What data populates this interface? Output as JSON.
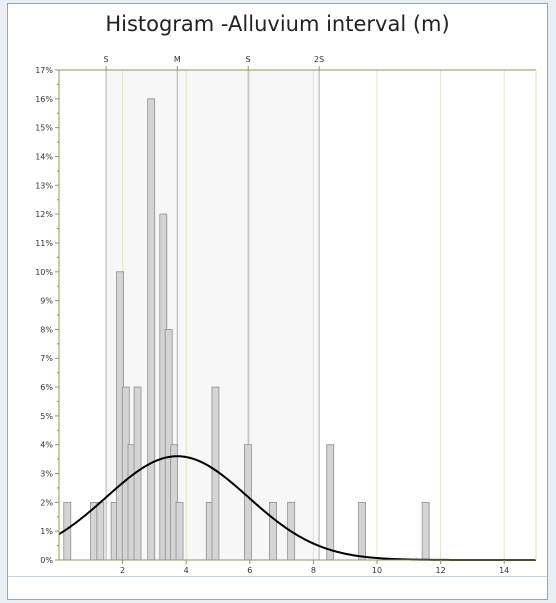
{
  "chart_data": {
    "type": "bar",
    "title": "Histogram -Alluvium interval (m)",
    "xlabel": "",
    "ylabel": "",
    "xlim": [
      0,
      15
    ],
    "ylim": [
      0,
      17
    ],
    "x_ticks": [
      2,
      4,
      6,
      8,
      10,
      12,
      14
    ],
    "y_ticks": [
      0,
      1,
      2,
      3,
      4,
      5,
      6,
      7,
      8,
      9,
      10,
      11,
      12,
      13,
      14,
      15,
      16,
      17
    ],
    "y_tick_suffix": "%",
    "grid": true,
    "top_axis": {
      "labels": [
        {
          "text": "S",
          "x": 1.48
        },
        {
          "text": "M",
          "x": 3.72
        },
        {
          "text": "S",
          "x": 5.95
        },
        {
          "text": "2S",
          "x": 8.18
        }
      ]
    },
    "bars": {
      "width": 0.22,
      "centers": [
        0.26,
        1.1,
        1.3,
        1.75,
        1.92,
        2.1,
        2.28,
        2.47,
        2.9,
        3.28,
        3.45,
        3.62,
        3.79,
        4.74,
        4.92,
        5.94,
        6.73,
        7.3,
        8.53,
        9.53,
        11.53
      ],
      "values": [
        2,
        2,
        2,
        2,
        10,
        6,
        4,
        6,
        16,
        12,
        8,
        4,
        2,
        2,
        6,
        4,
        2,
        2,
        4,
        2,
        2
      ]
    },
    "normal_curve": {
      "mean": 3.72,
      "sd": 2.23,
      "peak": 3.6,
      "color": "#000000"
    },
    "colors": {
      "bar_fill": "#d4d4d4",
      "bar_stroke": "#8f8f8f",
      "grid": "#e2e6c4",
      "sigma_line": "#b0b0b0",
      "axis": "#8c9a5a"
    }
  }
}
